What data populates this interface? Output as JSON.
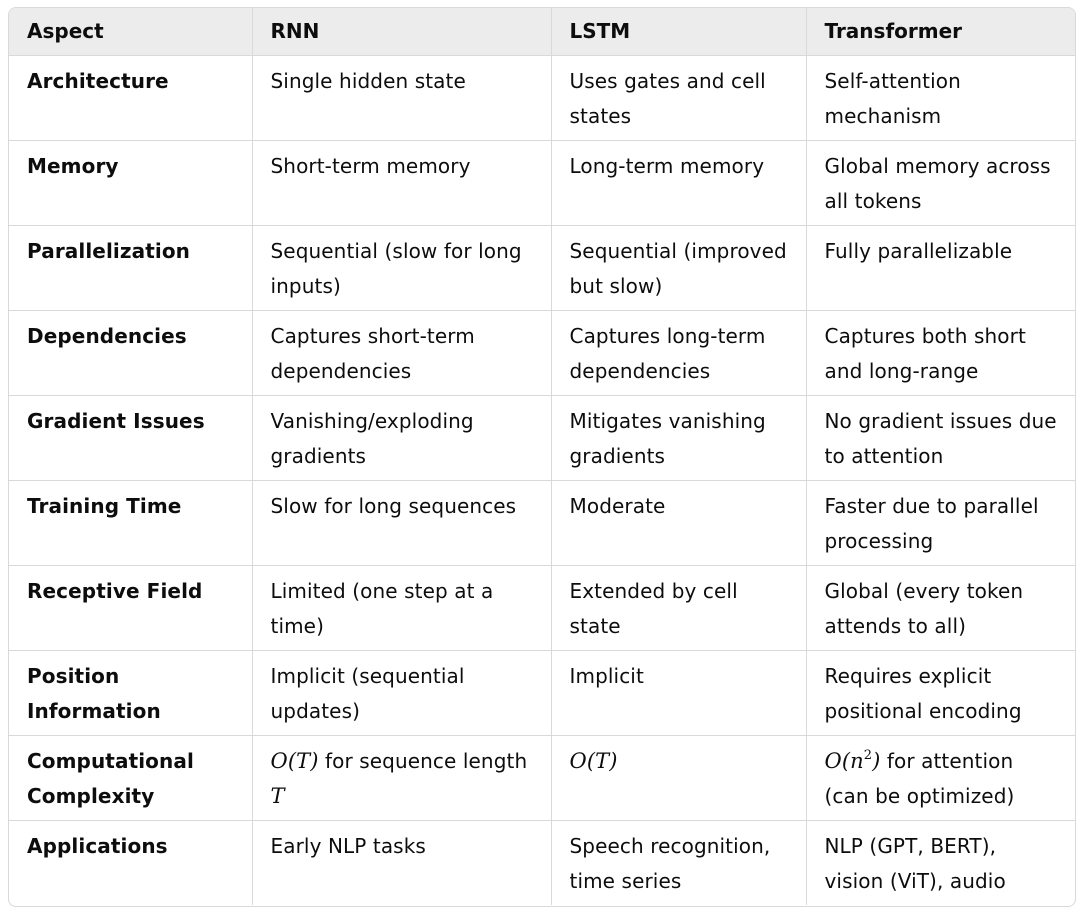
{
  "headers": [
    "Aspect",
    "RNN",
    "LSTM",
    "Transformer"
  ],
  "rows": [
    {
      "aspect": "Architecture",
      "rnn": "Single hidden state",
      "lstm": "Uses gates and cell states",
      "transformer": "Self-attention mechanism"
    },
    {
      "aspect": "Memory",
      "rnn": "Short-term memory",
      "lstm": "Long-term memory",
      "transformer": "Global memory across all tokens"
    },
    {
      "aspect": "Parallelization",
      "rnn": "Sequential (slow for long inputs)",
      "lstm": "Sequential (improved but slow)",
      "transformer": "Fully parallelizable"
    },
    {
      "aspect": "Dependencies",
      "rnn": "Captures short-term dependencies",
      "lstm": "Captures long-term dependencies",
      "transformer": "Captures both short and long-range"
    },
    {
      "aspect": "Gradient Issues",
      "rnn": "Vanishing/exploding gradients",
      "lstm": "Mitigates vanishing gradients",
      "transformer": "No gradient issues due to attention"
    },
    {
      "aspect": "Training Time",
      "rnn": "Slow for long sequences",
      "lstm": "Moderate",
      "transformer": "Faster due to parallel processing"
    },
    {
      "aspect": "Receptive Field",
      "rnn": "Limited (one step at a time)",
      "lstm": "Extended by cell state",
      "transformer": "Global (every token attends to all)"
    },
    {
      "aspect": "Position Information",
      "rnn": "Implicit (sequential updates)",
      "lstm": "Implicit",
      "transformer": "Requires explicit positional encoding"
    },
    {
      "aspect": "Computational Complexity",
      "rnn_math": "O(T)",
      "rnn_text": " for sequence length ",
      "rnn_math2": "T",
      "lstm_math": "O(T)",
      "transformer_math": "O(n",
      "transformer_sup": "2",
      "transformer_math_close": ")",
      "transformer_text": " for attention (can be optimized)"
    },
    {
      "aspect": "Applications",
      "rnn": "Early NLP tasks",
      "lstm": "Speech recognition, time series",
      "transformer": "NLP (GPT, BERT), vision (ViT), audio"
    }
  ]
}
